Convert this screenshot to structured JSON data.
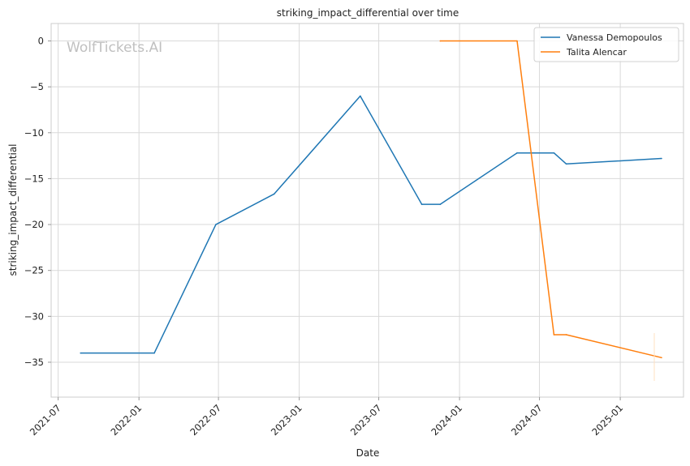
{
  "chart_data": {
    "type": "line",
    "title": "striking_impact_differential over time",
    "xlabel": "Date",
    "ylabel": "striking_impact_differential",
    "watermark": "WolfTickets.AI",
    "x_ticks": [
      "2021-07",
      "2022-01",
      "2022-07",
      "2023-01",
      "2023-07",
      "2024-01",
      "2024-07",
      "2025-01"
    ],
    "y_ticks": [
      0,
      -5,
      -10,
      -15,
      -20,
      -25,
      -30,
      -35
    ],
    "ylim": [
      -38.8,
      1.9
    ],
    "xlim": [
      "2021-06-15",
      "2025-05-25"
    ],
    "grid": true,
    "legend_position": "top-right",
    "series": [
      {
        "name": "Vanessa Demopoulos",
        "color": "#1f77b4",
        "x": [
          "2021-08-21",
          "2022-02-05",
          "2022-06-25",
          "2022-11-05",
          "2023-05-20",
          "2023-10-07",
          "2023-11-18",
          "2024-05-11",
          "2024-08-03",
          "2024-08-31",
          "2025-04-05"
        ],
        "y": [
          -34,
          -34,
          -20,
          -16.67,
          -6,
          -17.8,
          -17.8,
          -12.2,
          -12.2,
          -13.4,
          -12.8
        ]
      },
      {
        "name": "Talita Alencar",
        "color": "#ff7f0e",
        "x": [
          "2023-11-18",
          "2024-05-11",
          "2024-08-03",
          "2024-08-31",
          "2025-04-05"
        ],
        "y": [
          0,
          0,
          -32,
          -32,
          -34.5
        ]
      }
    ]
  }
}
